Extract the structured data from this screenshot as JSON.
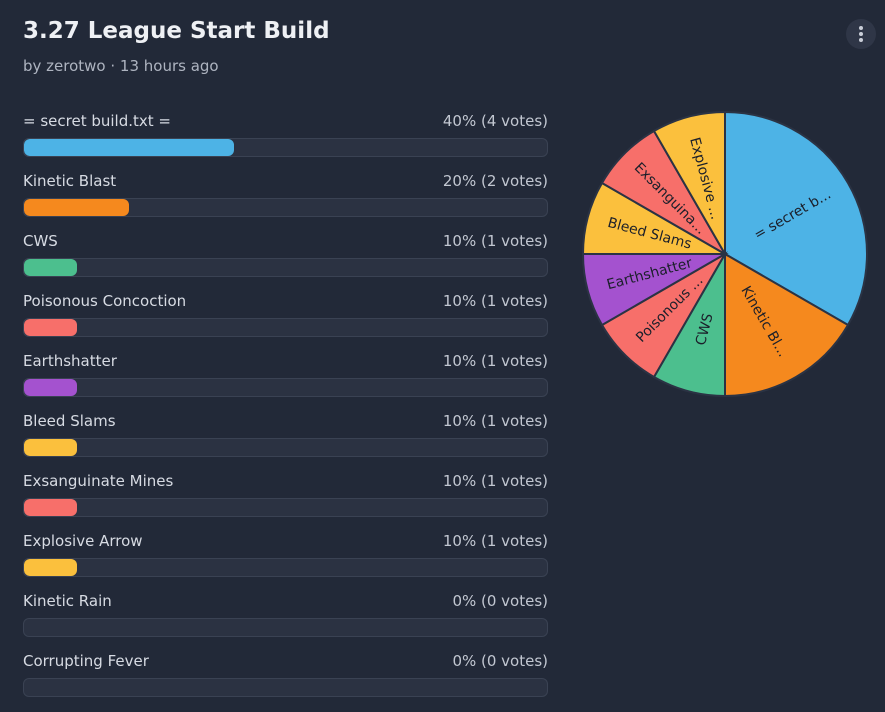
{
  "header": {
    "title": "3.27 League Start Build",
    "byline": "by zerotwo · 13 hours ago"
  },
  "options": [
    {
      "name": "= secret build.txt =",
      "percent": 40,
      "votes": 4,
      "result": "40% (4 votes)",
      "color": "#4db3e6",
      "pie_label": "= secret b..."
    },
    {
      "name": "Kinetic Blast",
      "percent": 20,
      "votes": 2,
      "result": "20% (2 votes)",
      "color": "#f5891e",
      "pie_label": "Kinetic Bl..."
    },
    {
      "name": "CWS",
      "percent": 10,
      "votes": 1,
      "result": "10% (1 votes)",
      "color": "#4cbf8e",
      "pie_label": "CWS"
    },
    {
      "name": "Poisonous Concoction",
      "percent": 10,
      "votes": 1,
      "result": "10% (1 votes)",
      "color": "#f76f6a",
      "pie_label": "Poisonous ..."
    },
    {
      "name": "Earthshatter",
      "percent": 10,
      "votes": 1,
      "result": "10% (1 votes)",
      "color": "#a452cf",
      "pie_label": "Earthshatter"
    },
    {
      "name": "Bleed Slams",
      "percent": 10,
      "votes": 1,
      "result": "10% (1 votes)",
      "color": "#fbc03d",
      "pie_label": "Bleed Slams"
    },
    {
      "name": "Exsanguinate Mines",
      "percent": 10,
      "votes": 1,
      "result": "10% (1 votes)",
      "color": "#f76f6a",
      "pie_label": "Exsanguina..."
    },
    {
      "name": "Explosive Arrow",
      "percent": 10,
      "votes": 1,
      "result": "10% (1 votes)",
      "color": "#fbc03d",
      "pie_label": "Explosive ..."
    },
    {
      "name": "Kinetic Rain",
      "percent": 0,
      "votes": 0,
      "result": "0% (0 votes)"
    },
    {
      "name": "Corrupting Fever",
      "percent": 0,
      "votes": 0,
      "result": "0% (0 votes)"
    }
  ]
}
